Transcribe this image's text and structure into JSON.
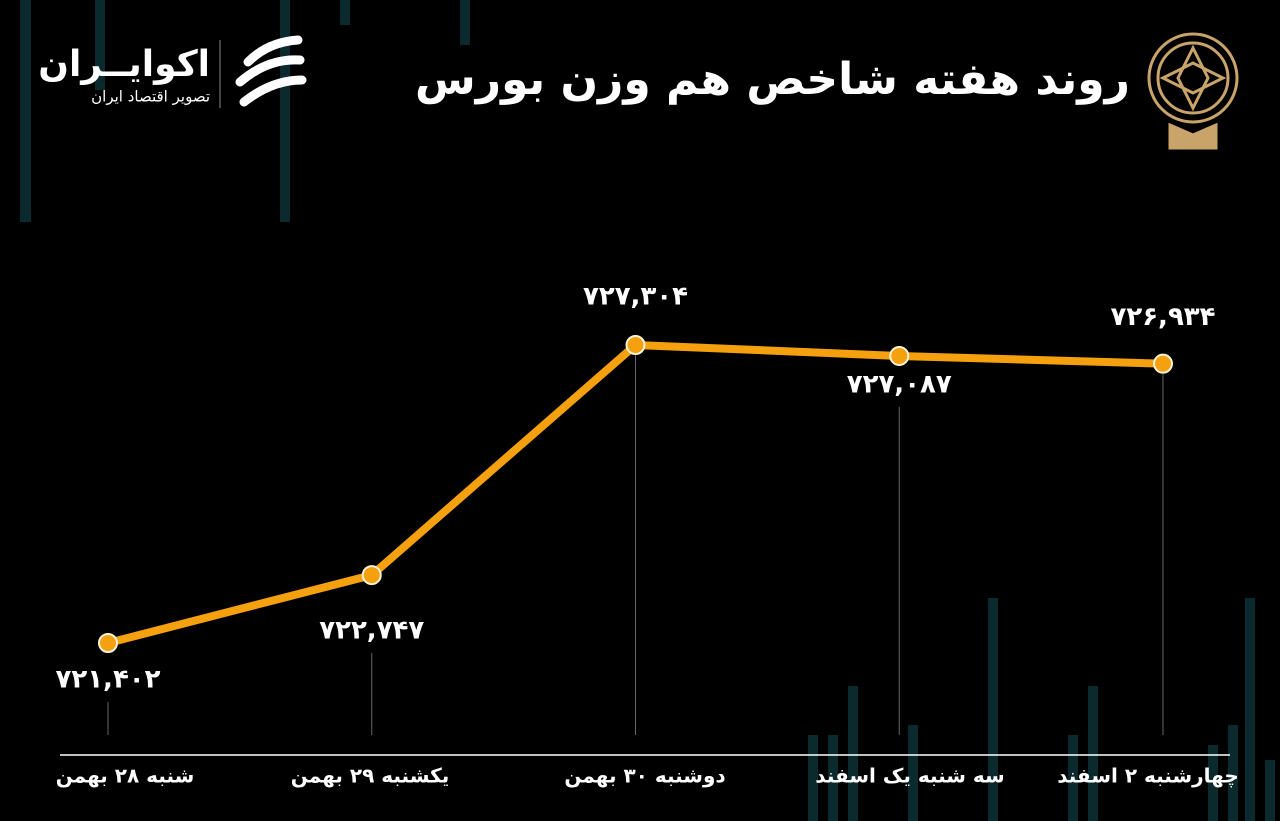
{
  "logo": {
    "name": "اکوایــران",
    "tagline": "تصویر اقتصاد ایران"
  },
  "chart_data": {
    "type": "line",
    "title": "روند هفته شاخص هم وزن بورس",
    "categories": [
      "شنبه ۲۸ بهمن",
      "یکشنبه ۲۹ بهمن",
      "دوشنبه ۳۰ بهمن",
      "سه شنبه یک اسفند",
      "چهارشنبه ۲ اسفند"
    ],
    "values": [
      721402,
      722747,
      727304,
      727087,
      726934
    ],
    "value_labels": [
      "۷۲۱,۴۰۲",
      "۷۲۲,۷۴۷",
      "۷۲۷,۳۰۴",
      "۷۲۷,۰۸۷",
      "۷۲۶,۹۳۴"
    ],
    "color": "#f5a00f"
  }
}
